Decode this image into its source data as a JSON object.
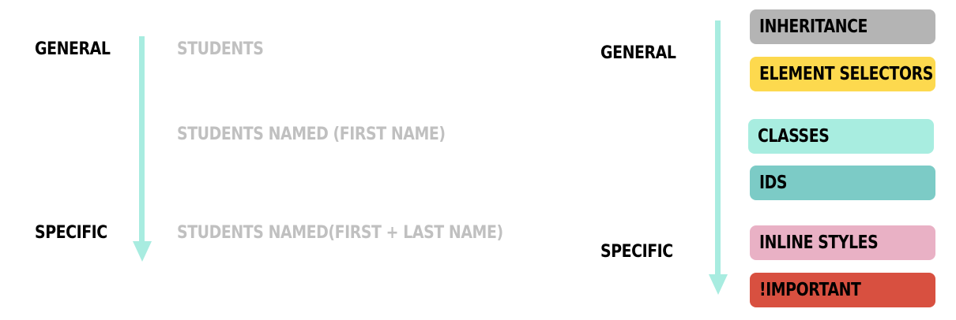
{
  "left": {
    "general_label": "GENERAL",
    "specific_label": "SPECIFIC",
    "items": [
      "STUDENTS",
      "STUDENTS NAMED (FIRST NAME)",
      "STUDENTS NAMED(FIRST + LAST NAME)"
    ]
  },
  "right": {
    "general_label": "GENERAL",
    "specific_label": "SPECIFIC",
    "items": [
      {
        "label": "INHERITANCE",
        "color": "#b4b4b4"
      },
      {
        "label": "ELEMENT SELECTORS",
        "color": "#fdd94e"
      },
      {
        "label": "CLASSES",
        "color": "#a8ede0"
      },
      {
        "label": "IDS",
        "color": "#7ccbc6"
      },
      {
        "label": "INLINE STYLES",
        "color": "#e9b1c5"
      },
      {
        "label": "!IMPORTANT",
        "color": "#d85040"
      }
    ]
  },
  "colors": {
    "arrow": "#a8ece0",
    "muted_text": "#c0c0c0"
  }
}
